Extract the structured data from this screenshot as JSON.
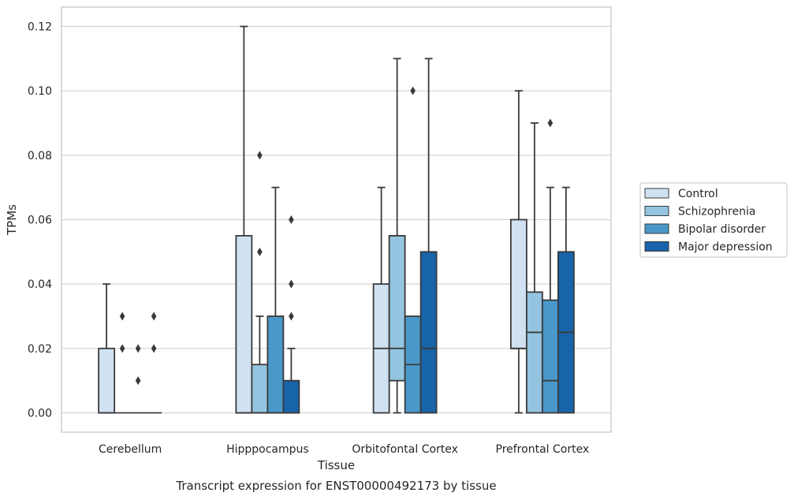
{
  "chart_data": {
    "type": "box",
    "title": "",
    "caption": "Transcript expression for ENST00000492173 by tissue",
    "xlabel": "Tissue",
    "ylabel": "TPMs",
    "ylim": [
      -0.006,
      0.126
    ],
    "yticks": [
      0.0,
      0.02,
      0.04,
      0.06,
      0.08,
      0.1,
      0.12
    ],
    "ytick_labels": [
      "0.00",
      "0.02",
      "0.04",
      "0.06",
      "0.08",
      "0.10",
      "0.12"
    ],
    "grid": "horizontal",
    "legend_position": "right",
    "categories": [
      "Cerebellum",
      "Hipppocampus",
      "Orbitofontal Cortex",
      "Prefrontal Cortex"
    ],
    "series": [
      {
        "name": "Control",
        "color": "#d0e1f2",
        "boxes": [
          {
            "whislo": 0.0,
            "q1": 0.0,
            "med": 0.0,
            "q3": 0.02,
            "whishi": 0.04,
            "fliers": []
          },
          {
            "whislo": 0.0,
            "q1": 0.0,
            "med": 0.0,
            "q3": 0.055,
            "whishi": 0.12,
            "fliers": []
          },
          {
            "whislo": 0.0,
            "q1": 0.0,
            "med": 0.02,
            "q3": 0.04,
            "whishi": 0.07,
            "fliers": []
          },
          {
            "whislo": 0.0,
            "q1": 0.02,
            "med": 0.02,
            "q3": 0.06,
            "whishi": 0.1,
            "fliers": []
          }
        ]
      },
      {
        "name": "Schizophrenia",
        "color": "#94c4df",
        "boxes": [
          {
            "whislo": 0.0,
            "q1": 0.0,
            "med": 0.0,
            "q3": 0.0,
            "whishi": 0.0,
            "fliers": [
              0.02,
              0.03
            ]
          },
          {
            "whislo": 0.0,
            "q1": 0.0,
            "med": 0.0,
            "q3": 0.015,
            "whishi": 0.03,
            "fliers": [
              0.05,
              0.08
            ]
          },
          {
            "whislo": 0.0,
            "q1": 0.01,
            "med": 0.02,
            "q3": 0.055,
            "whishi": 0.11,
            "fliers": []
          },
          {
            "whislo": 0.0,
            "q1": 0.0,
            "med": 0.025,
            "q3": 0.0375,
            "whishi": 0.09,
            "fliers": []
          }
        ]
      },
      {
        "name": "Bipolar disorder",
        "color": "#4a98c9",
        "boxes": [
          {
            "whislo": 0.0,
            "q1": 0.0,
            "med": 0.0,
            "q3": 0.0,
            "whishi": 0.0,
            "fliers": [
              0.01,
              0.02
            ]
          },
          {
            "whislo": 0.0,
            "q1": 0.0,
            "med": 0.0,
            "q3": 0.03,
            "whishi": 0.07,
            "fliers": []
          },
          {
            "whislo": 0.0,
            "q1": 0.0,
            "med": 0.015,
            "q3": 0.03,
            "whishi": 0.03,
            "fliers": [
              0.1
            ]
          },
          {
            "whislo": 0.0,
            "q1": 0.0,
            "med": 0.01,
            "q3": 0.035,
            "whishi": 0.07,
            "fliers": [
              0.09
            ]
          }
        ]
      },
      {
        "name": "Major depression",
        "color": "#1764ab",
        "boxes": [
          {
            "whislo": 0.0,
            "q1": 0.0,
            "med": 0.0,
            "q3": 0.0,
            "whishi": 0.0,
            "fliers": [
              0.02,
              0.03
            ]
          },
          {
            "whislo": 0.0,
            "q1": 0.0,
            "med": 0.0,
            "q3": 0.01,
            "whishi": 0.02,
            "fliers": [
              0.03,
              0.04,
              0.06
            ]
          },
          {
            "whislo": 0.0,
            "q1": 0.0,
            "med": 0.02,
            "q3": 0.05,
            "whishi": 0.11,
            "fliers": []
          },
          {
            "whislo": 0.0,
            "q1": 0.0,
            "med": 0.025,
            "q3": 0.05,
            "whishi": 0.07,
            "fliers": []
          }
        ]
      }
    ]
  }
}
